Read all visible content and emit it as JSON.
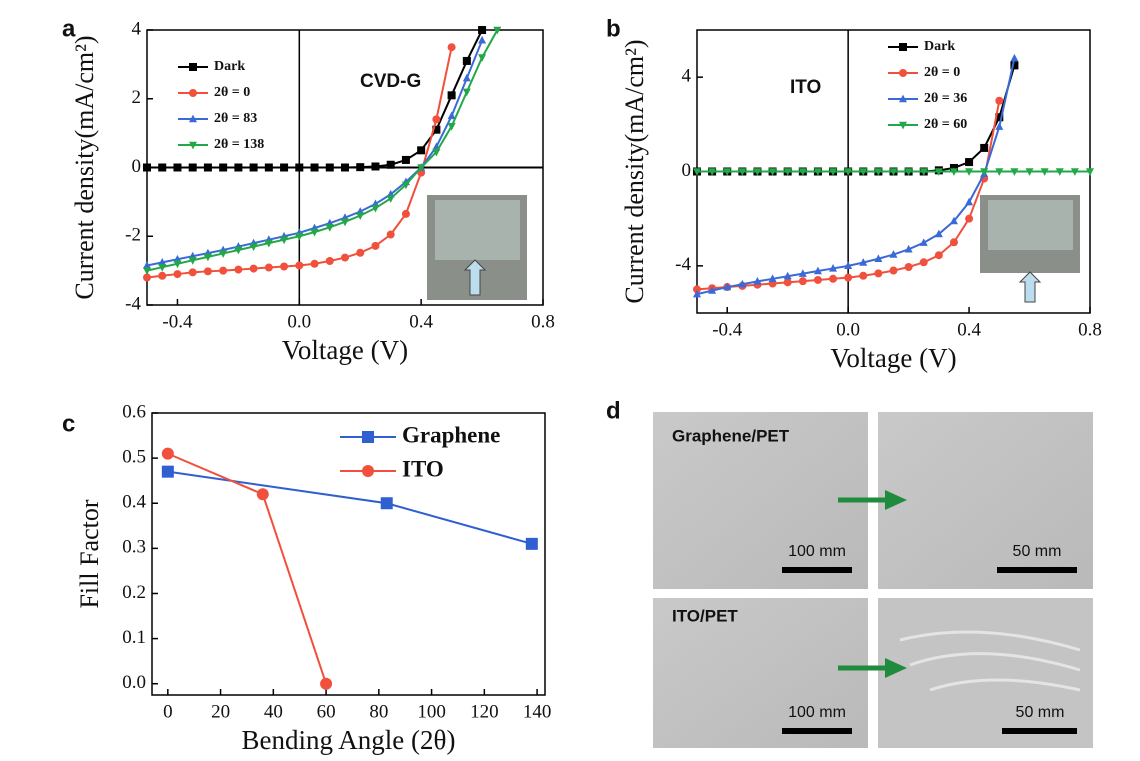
{
  "chart_data": [
    {
      "type": "line",
      "panel_label": "a",
      "annotations": [
        "CVD-G"
      ],
      "x_label": "Voltage (V)",
      "y_label": "Current density(mA/cm²)",
      "xlim": [
        -0.5,
        0.8
      ],
      "xticks": [
        -0.4,
        {
          "value": 0,
          "label": "0.0"
        },
        0.4,
        0.8
      ],
      "ylim": [
        -4,
        4
      ],
      "yticks": [
        -4,
        -2,
        0,
        2,
        4
      ],
      "zero_lines": true,
      "x": [
        -0.5,
        -0.45,
        -0.4,
        -0.35,
        -0.3,
        -0.25,
        -0.2,
        -0.15,
        -0.1,
        -0.05,
        0,
        0.05,
        0.1,
        0.15,
        0.2,
        0.25,
        0.3,
        0.35,
        0.4,
        0.45,
        0.5,
        0.55,
        0.6,
        0.65
      ],
      "series": [
        {
          "name": "Dark",
          "color": "#000000",
          "marker": "square",
          "values": [
            0,
            0,
            0,
            0,
            0,
            0,
            0,
            0,
            0,
            0,
            0,
            0,
            0,
            0,
            0.01,
            0.03,
            0.08,
            0.22,
            0.5,
            1.1,
            2.1,
            3.1,
            4.0,
            null
          ]
        },
        {
          "name": "2θ = 0",
          "color": "#f0503c",
          "marker": "circle",
          "values": [
            -3.2,
            -3.15,
            -3.1,
            -3.05,
            -3.02,
            -3.0,
            -2.97,
            -2.94,
            -2.91,
            -2.88,
            -2.85,
            -2.8,
            -2.72,
            -2.62,
            -2.48,
            -2.28,
            -1.95,
            -1.35,
            -0.15,
            1.4,
            3.5,
            null,
            null,
            null
          ]
        },
        {
          "name": "2θ = 83",
          "color": "#3a6ad8",
          "marker": "triangle-up",
          "values": [
            -2.85,
            -2.76,
            -2.67,
            -2.58,
            -2.49,
            -2.4,
            -2.3,
            -2.2,
            -2.1,
            -2.0,
            -1.9,
            -1.76,
            -1.62,
            -1.46,
            -1.28,
            -1.06,
            -0.78,
            -0.42,
            0.0,
            0.6,
            1.5,
            2.6,
            3.7,
            null
          ]
        },
        {
          "name": "2θ = 138",
          "color": "#22a848",
          "marker": "triangle-down",
          "values": [
            -3.0,
            -2.9,
            -2.8,
            -2.7,
            -2.6,
            -2.5,
            -2.4,
            -2.3,
            -2.2,
            -2.1,
            -2.0,
            -1.88,
            -1.74,
            -1.58,
            -1.4,
            -1.18,
            -0.9,
            -0.5,
            0.0,
            0.45,
            1.2,
            2.2,
            3.2,
            4.0
          ]
        }
      ]
    },
    {
      "type": "line",
      "panel_label": "b",
      "annotations": [
        "ITO"
      ],
      "x_label": "Voltage (V)",
      "y_label": "Current density(mA/cm²)",
      "xlim": [
        -0.5,
        0.8
      ],
      "xticks": [
        -0.4,
        {
          "value": 0,
          "label": "0.0"
        },
        0.4,
        0.8
      ],
      "ylim": [
        -6,
        6
      ],
      "yticks": [
        -4,
        0,
        4
      ],
      "zero_lines": true,
      "x": [
        -0.5,
        -0.45,
        -0.4,
        -0.35,
        -0.3,
        -0.25,
        -0.2,
        -0.15,
        -0.1,
        -0.05,
        0,
        0.05,
        0.1,
        0.15,
        0.2,
        0.25,
        0.3,
        0.35,
        0.4,
        0.45,
        0.5,
        0.55,
        0.6,
        0.65,
        0.7,
        0.75,
        0.8
      ],
      "series": [
        {
          "name": "Dark",
          "color": "#000000",
          "marker": "square",
          "values": [
            0,
            0,
            0,
            0,
            0,
            0,
            0,
            0,
            0,
            0,
            0,
            0,
            0,
            0,
            0,
            0,
            0.05,
            0.15,
            0.4,
            1.0,
            2.3,
            4.5,
            null,
            null,
            null,
            null,
            null
          ]
        },
        {
          "name": "2θ = 0",
          "color": "#f0503c",
          "marker": "circle",
          "values": [
            -5.0,
            -4.95,
            -4.9,
            -4.85,
            -4.8,
            -4.75,
            -4.7,
            -4.65,
            -4.6,
            -4.55,
            -4.5,
            -4.42,
            -4.32,
            -4.2,
            -4.05,
            -3.85,
            -3.55,
            -3.0,
            -2.0,
            -0.3,
            3.0,
            null,
            null,
            null,
            null,
            null,
            null
          ]
        },
        {
          "name": "2θ = 36",
          "color": "#3a6ad8",
          "marker": "triangle-up",
          "values": [
            -5.2,
            -5.05,
            -4.9,
            -4.78,
            -4.66,
            -4.55,
            -4.44,
            -4.33,
            -4.22,
            -4.11,
            -4.0,
            -3.86,
            -3.7,
            -3.52,
            -3.3,
            -3.02,
            -2.65,
            -2.1,
            -1.3,
            -0.1,
            1.9,
            4.8,
            null,
            null,
            null,
            null,
            null
          ]
        },
        {
          "name": "2θ = 60",
          "color": "#22a848",
          "marker": "triangle-down",
          "values": [
            0,
            0,
            0,
            0,
            0,
            0,
            0,
            0,
            0,
            0,
            0,
            0,
            0,
            0,
            0,
            0,
            0,
            0,
            0,
            0,
            0,
            0,
            0,
            0,
            0,
            0,
            0
          ]
        }
      ]
    },
    {
      "type": "line",
      "panel_label": "c",
      "x_label": "Bending Angle (2θ)",
      "y_label": "Fill Factor",
      "xlim": [
        -6,
        143
      ],
      "xticks": [
        0,
        20,
        40,
        60,
        80,
        100,
        120,
        140
      ],
      "ylim": [
        -0.025,
        0.6
      ],
      "yticks": [
        {
          "value": 0,
          "label": "0.0"
        },
        0.1,
        0.2,
        0.3,
        0.4,
        0.5,
        0.6
      ],
      "series": [
        {
          "name": "Graphene",
          "color": "#2f5fd0",
          "marker": "square",
          "x": [
            0,
            83,
            138
          ],
          "values": [
            0.47,
            0.4,
            0.31
          ]
        },
        {
          "name": "ITO",
          "color": "#f0503c",
          "marker": "circle",
          "x": [
            0,
            36,
            60
          ],
          "values": [
            0.51,
            0.42,
            0.0
          ]
        }
      ]
    }
  ],
  "image_panel": {
    "panel_label": "d",
    "rows": [
      {
        "label": "Graphene/PET",
        "scale_left": "100 mm",
        "scale_right": "50 mm"
      },
      {
        "label": "ITO/PET",
        "scale_left": "100 mm",
        "scale_right": "50 mm"
      }
    ]
  }
}
